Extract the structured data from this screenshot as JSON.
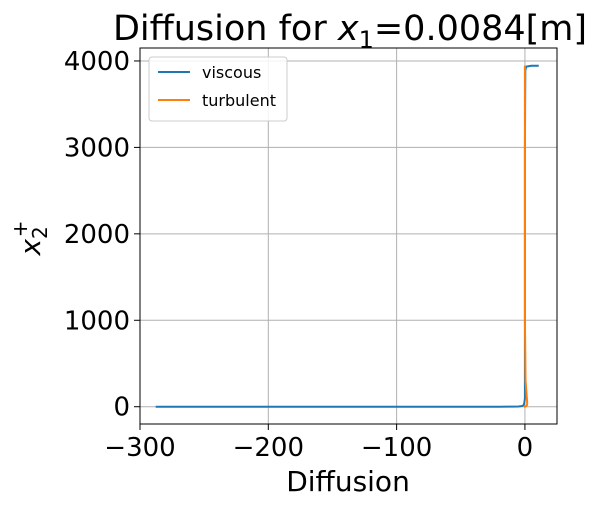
{
  "chart_data": {
    "type": "line",
    "title": {
      "prefix": "Diffusion for ",
      "var": "x",
      "sub": "1",
      "suffix": "=0.0084[m]"
    },
    "xlabel": "Diffusion",
    "ylabel": {
      "var": "x",
      "sub": "2",
      "sup": "+"
    },
    "xlim": [
      -300,
      25
    ],
    "ylim": [
      -200,
      4150
    ],
    "xticks": [
      -300,
      -200,
      -100,
      0
    ],
    "xtick_labels": [
      "−300",
      "−200",
      "−100",
      "0"
    ],
    "yticks": [
      0,
      1000,
      2000,
      3000,
      4000
    ],
    "ytick_labels": [
      "0",
      "1000",
      "2000",
      "3000",
      "4000"
    ],
    "grid": true,
    "legend_position": "top-left",
    "series": [
      {
        "name": "viscous",
        "color": "#1f77b4",
        "points": [
          [
            -287,
            0
          ],
          [
            -200,
            0
          ],
          [
            -100,
            0
          ],
          [
            -20,
            0
          ],
          [
            -10,
            1
          ],
          [
            -5,
            3
          ],
          [
            -2,
            8
          ],
          [
            -1,
            20
          ],
          [
            -0.5,
            40
          ],
          [
            0,
            100
          ],
          [
            0,
            1000
          ],
          [
            0,
            2000
          ],
          [
            0,
            3000
          ],
          [
            0.3,
            3890
          ],
          [
            1,
            3935
          ],
          [
            5,
            3945
          ],
          [
            10,
            3945
          ]
        ]
      },
      {
        "name": "turbulent",
        "color": "#ff7f0e",
        "points": [
          [
            0,
            0
          ],
          [
            0.5,
            5
          ],
          [
            1.5,
            15
          ],
          [
            1.8,
            40
          ],
          [
            0.5,
            300
          ],
          [
            0,
            1000
          ],
          [
            0,
            2000
          ],
          [
            0,
            3000
          ],
          [
            0,
            3500
          ],
          [
            0,
            3935
          ]
        ]
      }
    ]
  }
}
